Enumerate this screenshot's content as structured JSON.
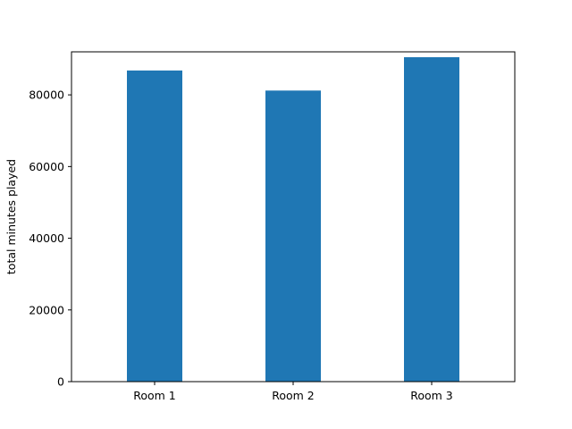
{
  "chart_data": {
    "type": "bar",
    "title": "",
    "xlabel": "",
    "ylabel": "total minutes played",
    "categories": [
      "Room 1",
      "Room 2",
      "Room 3"
    ],
    "values": [
      86800,
      81200,
      90500
    ],
    "ylim": [
      0,
      92000
    ],
    "yticks": [
      0,
      20000,
      40000,
      60000,
      80000
    ],
    "ytick_labels": [
      "0",
      "20000",
      "40000",
      "60000",
      "80000"
    ],
    "grid": false,
    "legend": "none",
    "bar_color": "#1f77b4"
  }
}
